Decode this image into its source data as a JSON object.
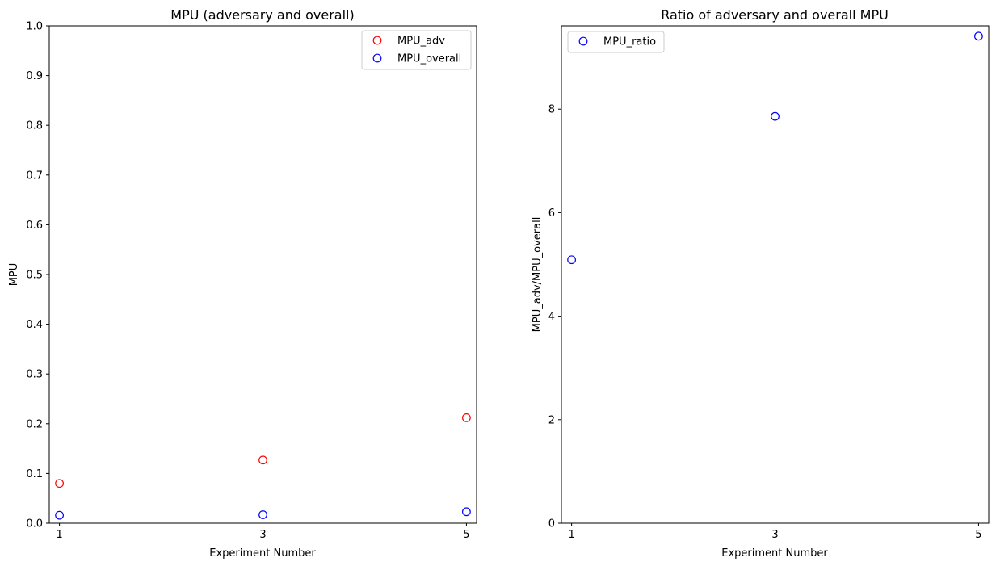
{
  "chart_data": [
    {
      "type": "scatter",
      "title": "MPU (adversary and overall)",
      "xlabel": "Experiment Number",
      "ylabel": "MPU",
      "x_ticks": [
        "1",
        "3",
        "5"
      ],
      "y_ticks": [
        "0.0",
        "0.1",
        "0.2",
        "0.3",
        "0.4",
        "0.5",
        "0.6",
        "0.7",
        "0.8",
        "0.9",
        "1.0"
      ],
      "ylim": [
        0,
        1
      ],
      "xlim": [
        0.9,
        5.1
      ],
      "grid": false,
      "legend_position": "top-right",
      "series": [
        {
          "name": "MPU_adv",
          "color": "#ff0000",
          "marker": "hollow-circle",
          "x": [
            1,
            3,
            5
          ],
          "y": [
            0.08,
            0.127,
            0.212
          ]
        },
        {
          "name": "MPU_overall",
          "color": "#0000ff",
          "marker": "hollow-circle",
          "x": [
            1,
            3,
            5
          ],
          "y": [
            0.016,
            0.017,
            0.023
          ]
        }
      ]
    },
    {
      "type": "scatter",
      "title": "Ratio of adversary and overall MPU",
      "xlabel": "Experiment Number",
      "ylabel": "MPU_adv/MPU_overall",
      "x_ticks": [
        "1",
        "3",
        "5"
      ],
      "y_ticks": [
        "0",
        "2",
        "4",
        "6",
        "8"
      ],
      "ylim": [
        0,
        9.61
      ],
      "xlim": [
        0.9,
        5.1
      ],
      "grid": false,
      "legend_position": "top-left",
      "series": [
        {
          "name": "MPU_ratio",
          "color": "#0000ff",
          "marker": "hollow-circle",
          "x": [
            1,
            3,
            5
          ],
          "y": [
            5.09,
            7.86,
            9.41
          ]
        }
      ]
    }
  ]
}
